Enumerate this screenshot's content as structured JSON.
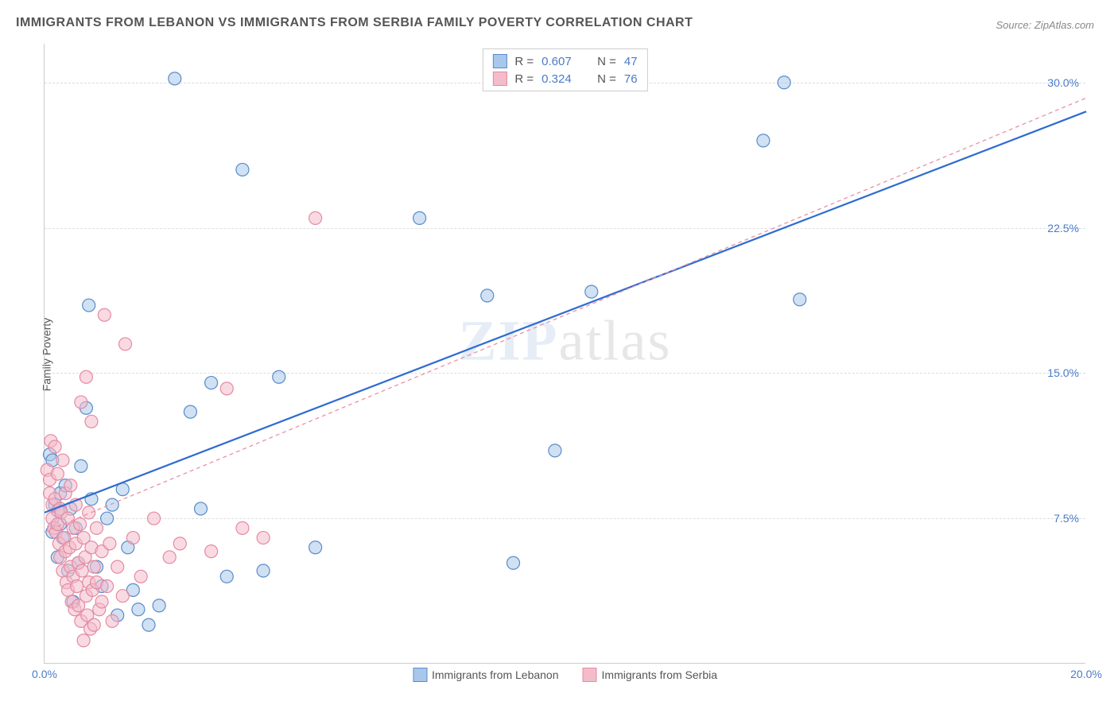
{
  "title": "IMMIGRANTS FROM LEBANON VS IMMIGRANTS FROM SERBIA FAMILY POVERTY CORRELATION CHART",
  "source": "Source: ZipAtlas.com",
  "ylabel": "Family Poverty",
  "watermark_zip": "ZIP",
  "watermark_atlas": "atlas",
  "chart": {
    "type": "scatter",
    "xlim": [
      0,
      20
    ],
    "ylim": [
      0,
      32
    ],
    "yticks": [
      7.5,
      15.0,
      22.5,
      30.0
    ],
    "ytick_labels": [
      "7.5%",
      "15.0%",
      "22.5%",
      "30.0%"
    ],
    "xticks": [
      0,
      20
    ],
    "xtick_labels": [
      "0.0%",
      "20.0%"
    ],
    "grid_color": "#dddddd",
    "background_color": "#ffffff",
    "tick_color_blue": "#4a7bc8",
    "marker_radius": 8,
    "marker_stroke_width": 1.2,
    "series": [
      {
        "name": "Immigrants from Lebanon",
        "fill": "#a7c8ea",
        "stroke": "#5b8bc9",
        "fill_opacity": 0.55,
        "R": "0.607",
        "N": "47",
        "trend": {
          "x1": 0,
          "y1": 7.8,
          "x2": 20,
          "y2": 28.5,
          "stroke": "#2e6bd1",
          "width": 2.2,
          "dash": "none"
        },
        "points": [
          [
            0.1,
            10.8
          ],
          [
            0.15,
            10.5
          ],
          [
            0.2,
            8.2
          ],
          [
            0.25,
            7.9
          ],
          [
            0.3,
            7.2
          ],
          [
            0.3,
            8.8
          ],
          [
            0.35,
            6.5
          ],
          [
            0.4,
            9.2
          ],
          [
            0.45,
            4.8
          ],
          [
            0.5,
            8.0
          ],
          [
            0.55,
            3.2
          ],
          [
            0.6,
            7.0
          ],
          [
            0.65,
            5.2
          ],
          [
            0.7,
            10.2
          ],
          [
            0.8,
            13.2
          ],
          [
            0.85,
            18.5
          ],
          [
            0.9,
            8.5
          ],
          [
            1.0,
            5.0
          ],
          [
            1.1,
            4.0
          ],
          [
            1.2,
            7.5
          ],
          [
            1.3,
            8.2
          ],
          [
            1.4,
            2.5
          ],
          [
            1.5,
            9.0
          ],
          [
            1.6,
            6.0
          ],
          [
            1.7,
            3.8
          ],
          [
            2.0,
            2.0
          ],
          [
            2.2,
            3.0
          ],
          [
            2.5,
            30.2
          ],
          [
            2.8,
            13.0
          ],
          [
            3.0,
            8.0
          ],
          [
            3.2,
            14.5
          ],
          [
            3.5,
            4.5
          ],
          [
            3.8,
            25.5
          ],
          [
            4.2,
            4.8
          ],
          [
            4.5,
            14.8
          ],
          [
            5.2,
            6.0
          ],
          [
            7.2,
            23.0
          ],
          [
            8.5,
            19.0
          ],
          [
            9.0,
            5.2
          ],
          [
            9.8,
            11.0
          ],
          [
            10.5,
            19.2
          ],
          [
            13.8,
            27.0
          ],
          [
            14.2,
            30.0
          ],
          [
            14.5,
            18.8
          ],
          [
            0.15,
            6.8
          ],
          [
            0.25,
            5.5
          ],
          [
            1.8,
            2.8
          ]
        ]
      },
      {
        "name": "Immigrants from Serbia",
        "fill": "#f4bccb",
        "stroke": "#e58aa2",
        "fill_opacity": 0.55,
        "R": "0.324",
        "N": "76",
        "trend": {
          "x1": 0,
          "y1": 6.8,
          "x2": 20,
          "y2": 29.2,
          "stroke": "#e892a6",
          "width": 1.3,
          "dash": "5,4"
        },
        "points": [
          [
            0.05,
            10.0
          ],
          [
            0.1,
            9.5
          ],
          [
            0.1,
            8.8
          ],
          [
            0.12,
            11.5
          ],
          [
            0.15,
            8.2
          ],
          [
            0.15,
            7.5
          ],
          [
            0.18,
            7.0
          ],
          [
            0.2,
            11.2
          ],
          [
            0.2,
            8.5
          ],
          [
            0.22,
            6.8
          ],
          [
            0.25,
            9.8
          ],
          [
            0.25,
            7.2
          ],
          [
            0.28,
            6.2
          ],
          [
            0.3,
            8.0
          ],
          [
            0.3,
            5.5
          ],
          [
            0.32,
            7.8
          ],
          [
            0.35,
            4.8
          ],
          [
            0.35,
            10.5
          ],
          [
            0.38,
            6.5
          ],
          [
            0.4,
            5.8
          ],
          [
            0.4,
            8.8
          ],
          [
            0.42,
            4.2
          ],
          [
            0.45,
            7.5
          ],
          [
            0.45,
            3.8
          ],
          [
            0.48,
            6.0
          ],
          [
            0.5,
            9.2
          ],
          [
            0.5,
            5.0
          ],
          [
            0.52,
            3.2
          ],
          [
            0.55,
            7.0
          ],
          [
            0.55,
            4.5
          ],
          [
            0.58,
            2.8
          ],
          [
            0.6,
            6.2
          ],
          [
            0.6,
            8.2
          ],
          [
            0.62,
            4.0
          ],
          [
            0.65,
            5.2
          ],
          [
            0.65,
            3.0
          ],
          [
            0.68,
            7.2
          ],
          [
            0.7,
            2.2
          ],
          [
            0.7,
            13.5
          ],
          [
            0.72,
            4.8
          ],
          [
            0.75,
            6.5
          ],
          [
            0.75,
            1.2
          ],
          [
            0.78,
            5.5
          ],
          [
            0.8,
            3.5
          ],
          [
            0.8,
            14.8
          ],
          [
            0.82,
            2.5
          ],
          [
            0.85,
            7.8
          ],
          [
            0.85,
            4.2
          ],
          [
            0.88,
            1.8
          ],
          [
            0.9,
            6.0
          ],
          [
            0.9,
            12.5
          ],
          [
            0.92,
            3.8
          ],
          [
            0.95,
            5.0
          ],
          [
            0.95,
            2.0
          ],
          [
            1.0,
            4.2
          ],
          [
            1.0,
            7.0
          ],
          [
            1.05,
            2.8
          ],
          [
            1.1,
            5.8
          ],
          [
            1.1,
            3.2
          ],
          [
            1.15,
            18.0
          ],
          [
            1.2,
            4.0
          ],
          [
            1.25,
            6.2
          ],
          [
            1.3,
            2.2
          ],
          [
            1.4,
            5.0
          ],
          [
            1.5,
            3.5
          ],
          [
            1.55,
            16.5
          ],
          [
            1.7,
            6.5
          ],
          [
            1.85,
            4.5
          ],
          [
            2.1,
            7.5
          ],
          [
            2.4,
            5.5
          ],
          [
            2.6,
            6.2
          ],
          [
            3.2,
            5.8
          ],
          [
            3.5,
            14.2
          ],
          [
            3.8,
            7.0
          ],
          [
            4.2,
            6.5
          ],
          [
            5.2,
            23.0
          ]
        ]
      }
    ]
  },
  "legend_top": {
    "rows": [
      {
        "swatch_fill": "#a7c8ea",
        "swatch_stroke": "#5b8bc9",
        "r_label": "R =",
        "r_value": "0.607",
        "n_label": "N =",
        "n_value": "47"
      },
      {
        "swatch_fill": "#f4bccb",
        "swatch_stroke": "#e58aa2",
        "r_label": "R =",
        "r_value": "0.324",
        "n_label": "N =",
        "n_value": "76"
      }
    ]
  },
  "legend_bottom": {
    "items": [
      {
        "swatch_fill": "#a7c8ea",
        "swatch_stroke": "#5b8bc9",
        "label": "Immigrants from Lebanon"
      },
      {
        "swatch_fill": "#f4bccb",
        "swatch_stroke": "#e58aa2",
        "label": "Immigrants from Serbia"
      }
    ]
  }
}
